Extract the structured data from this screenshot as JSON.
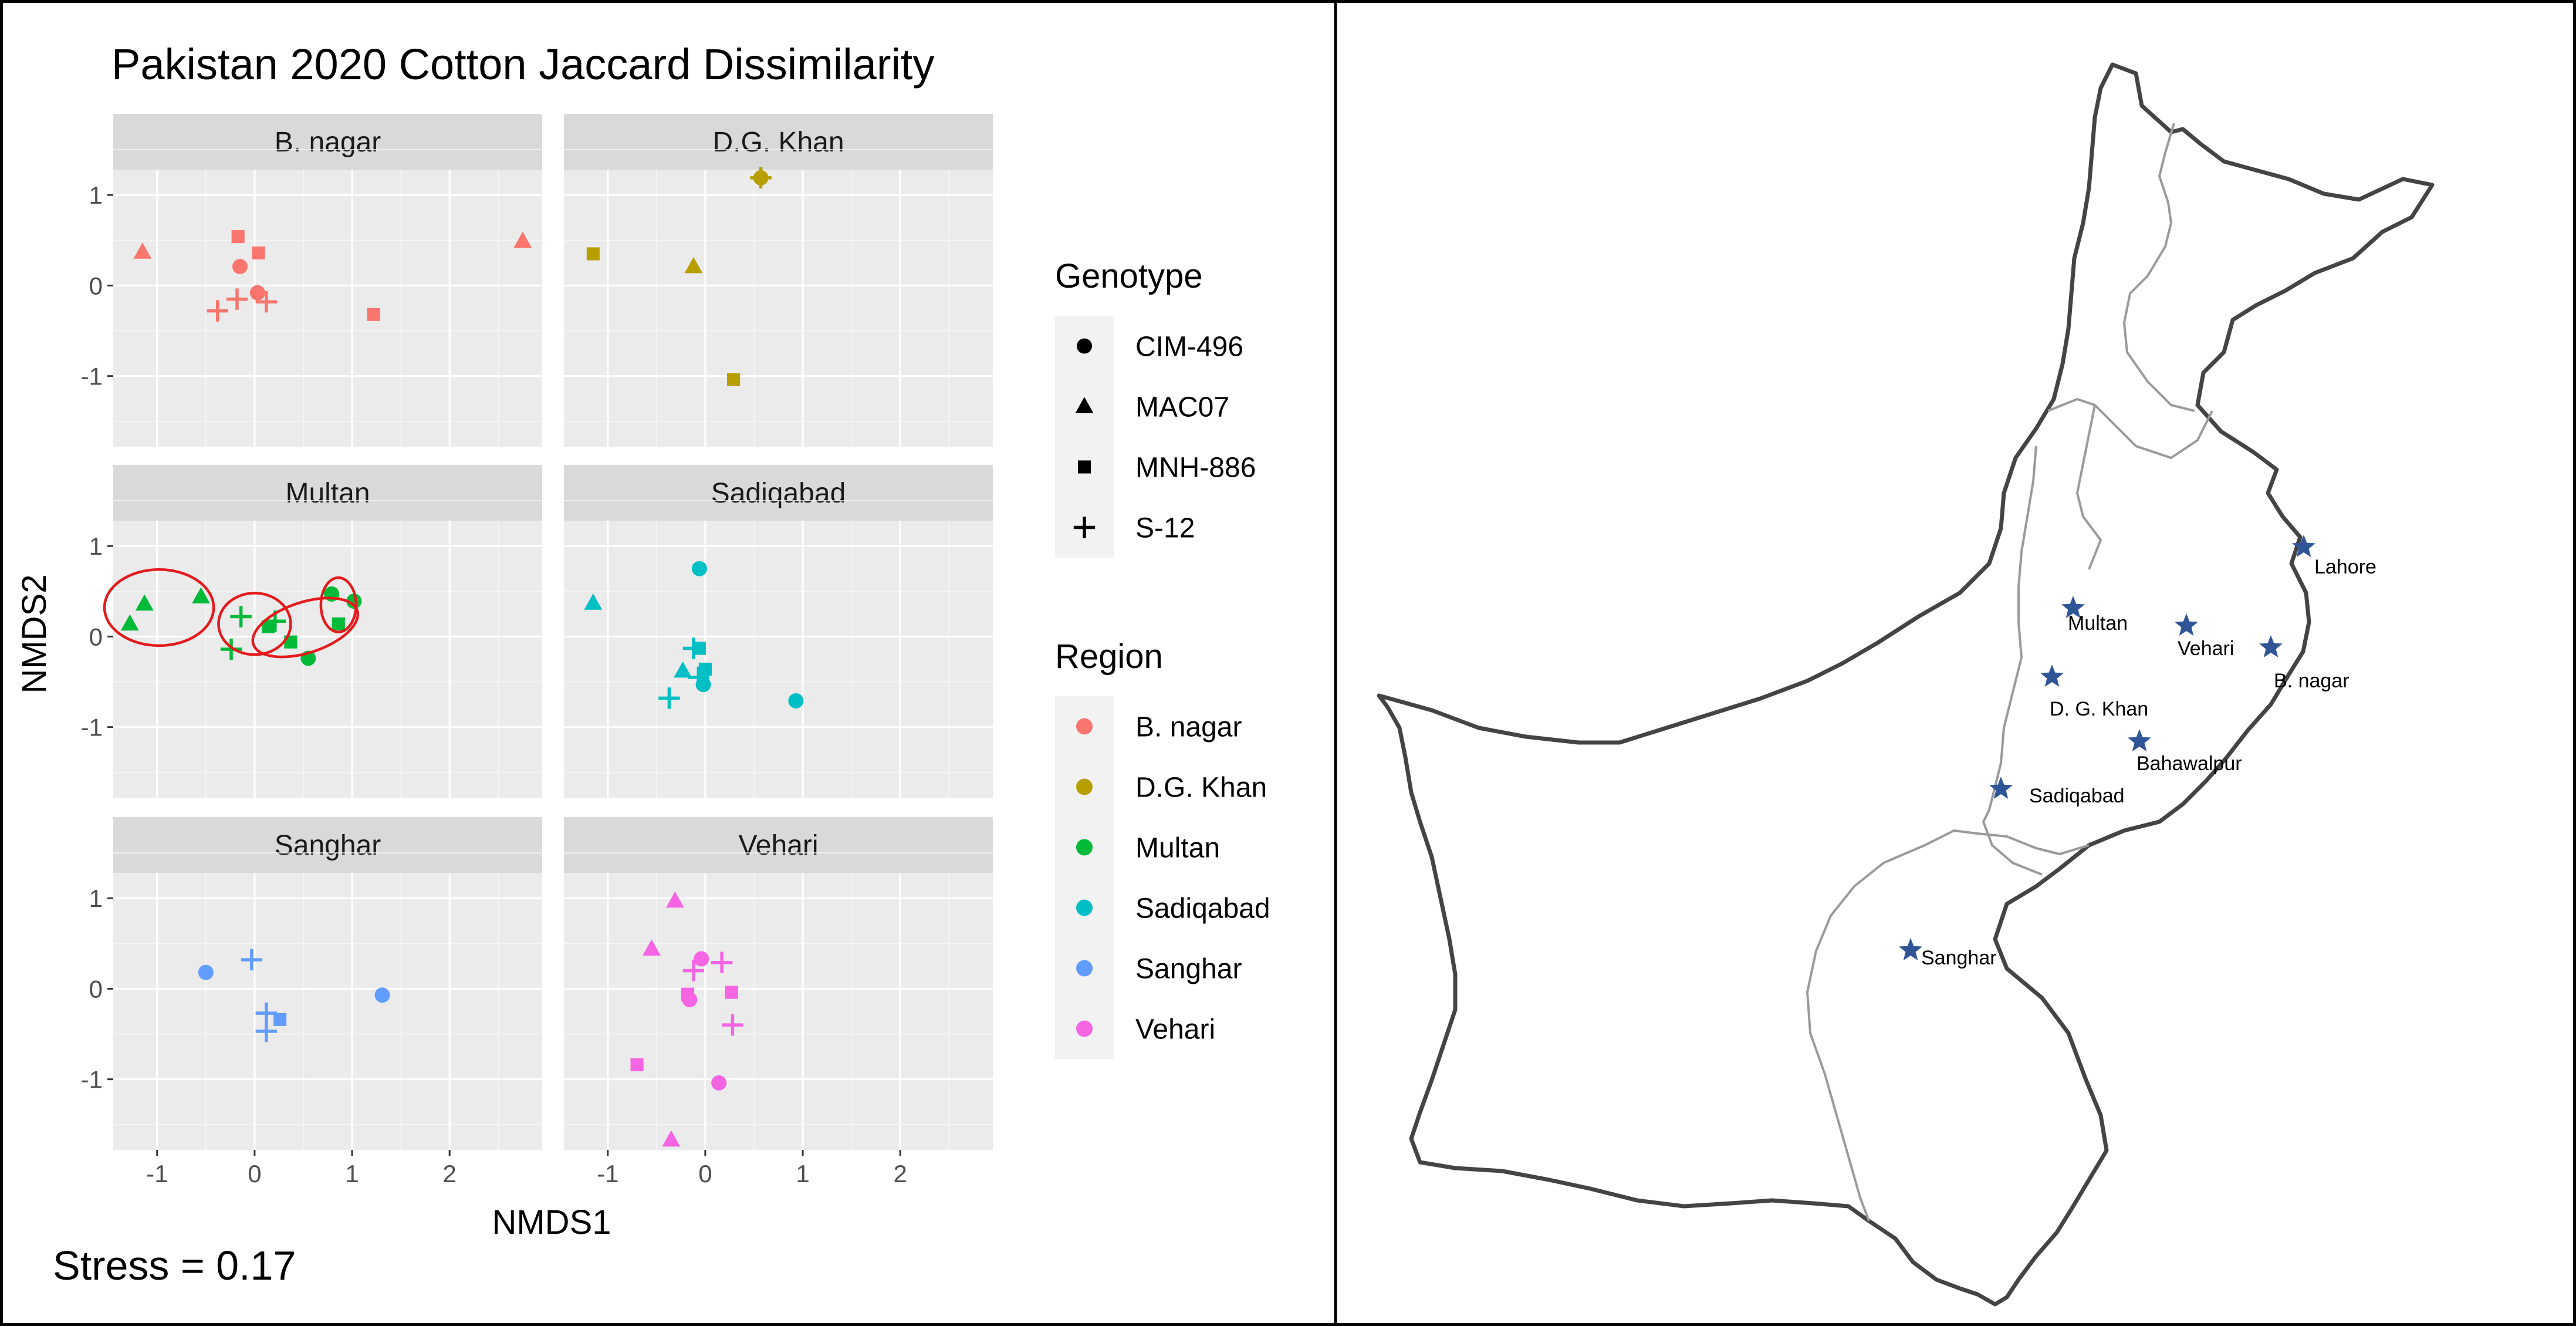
{
  "chart_data": {
    "type": "scatter",
    "title": "Pakistan 2020 Cotton Jaccard Dissimilarity",
    "xlabel": "NMDS1",
    "ylabel": "NMDS2",
    "xlim": [
      -1.45,
      2.95
    ],
    "ylim": [
      -1.78,
      1.28
    ],
    "xticks": [
      -1,
      0,
      1,
      2
    ],
    "xtick_labels": [
      "-1",
      "0",
      "1",
      "2"
    ],
    "yticks": [
      1,
      0,
      -1
    ],
    "ytick_labels": [
      "1",
      "0",
      "-1"
    ],
    "grid": true,
    "legend_position": "right",
    "annotation": "Stress = 0.17",
    "legends": {
      "genotype": {
        "title": "Genotype",
        "items": [
          {
            "label": "CIM-496",
            "shape": "circle"
          },
          {
            "label": "MAC07",
            "shape": "triangle"
          },
          {
            "label": "MNH-886",
            "shape": "square"
          },
          {
            "label": "S-12",
            "shape": "plus"
          }
        ]
      },
      "region": {
        "title": "Region",
        "items": [
          {
            "label": "B. nagar",
            "color": "#F8766D"
          },
          {
            "label": "D.G. Khan",
            "color": "#B79F00"
          },
          {
            "label": "Multan",
            "color": "#00BA38"
          },
          {
            "label": "Sadiqabad",
            "color": "#00BFC4"
          },
          {
            "label": "Sanghar",
            "color": "#619CFF"
          },
          {
            "label": "Vehari",
            "color": "#F564E3"
          }
        ]
      }
    },
    "facets": [
      {
        "name": "B. nagar",
        "color": "#F8766D",
        "points": [
          {
            "x": -1.15,
            "y": 0.37,
            "g": "triangle"
          },
          {
            "x": 2.75,
            "y": 0.49,
            "g": "triangle"
          },
          {
            "x": -0.17,
            "y": 0.54,
            "g": "square"
          },
          {
            "x": 0.04,
            "y": 0.36,
            "g": "square"
          },
          {
            "x": 1.22,
            "y": -0.32,
            "g": "square"
          },
          {
            "x": -0.15,
            "y": 0.21,
            "g": "circle"
          },
          {
            "x": 0.03,
            "y": -0.08,
            "g": "circle"
          },
          {
            "x": -0.38,
            "y": -0.28,
            "g": "plus"
          },
          {
            "x": -0.18,
            "y": -0.15,
            "g": "plus"
          },
          {
            "x": 0.12,
            "y": -0.18,
            "g": "plus"
          }
        ]
      },
      {
        "name": "D.G. Khan",
        "color": "#B79F00",
        "points": [
          {
            "x": 0.57,
            "y": 1.19,
            "g": "circle"
          },
          {
            "x": 0.57,
            "y": 1.19,
            "g": "plus"
          },
          {
            "x": -1.15,
            "y": 0.35,
            "g": "square"
          },
          {
            "x": -0.12,
            "y": 0.21,
            "g": "triangle"
          },
          {
            "x": 0.29,
            "y": -1.04,
            "g": "square"
          }
        ]
      },
      {
        "name": "Multan",
        "color": "#00BA38",
        "points": [
          {
            "x": -1.28,
            "y": 0.14,
            "g": "triangle"
          },
          {
            "x": -1.13,
            "y": 0.36,
            "g": "triangle"
          },
          {
            "x": -0.55,
            "y": 0.44,
            "g": "triangle"
          },
          {
            "x": -0.14,
            "y": 0.22,
            "g": "plus"
          },
          {
            "x": -0.24,
            "y": -0.14,
            "g": "plus"
          },
          {
            "x": 0.21,
            "y": 0.17,
            "g": "plus"
          },
          {
            "x": 0.14,
            "y": 0.11,
            "g": "square"
          },
          {
            "x": 0.37,
            "y": -0.06,
            "g": "square"
          },
          {
            "x": 0.86,
            "y": 0.14,
            "g": "square"
          },
          {
            "x": 0.55,
            "y": -0.24,
            "g": "circle"
          },
          {
            "x": 0.79,
            "y": 0.47,
            "g": "circle"
          },
          {
            "x": 1.02,
            "y": 0.39,
            "g": "circle"
          }
        ]
      },
      {
        "name": "Sadiqabad",
        "color": "#00BFC4",
        "points": [
          {
            "x": -1.15,
            "y": 0.37,
            "g": "triangle"
          },
          {
            "x": -0.23,
            "y": -0.38,
            "g": "triangle"
          },
          {
            "x": -0.06,
            "y": 0.75,
            "g": "circle"
          },
          {
            "x": 0.93,
            "y": -0.71,
            "g": "circle"
          },
          {
            "x": -0.02,
            "y": -0.53,
            "g": "circle"
          },
          {
            "x": -0.06,
            "y": -0.13,
            "g": "square"
          },
          {
            "x": 0.0,
            "y": -0.36,
            "g": "square"
          },
          {
            "x": -0.12,
            "y": -0.13,
            "g": "plus"
          },
          {
            "x": -0.07,
            "y": -0.45,
            "g": "plus"
          },
          {
            "x": -0.37,
            "y": -0.68,
            "g": "plus"
          }
        ]
      },
      {
        "name": "Sanghar",
        "color": "#619CFF",
        "points": [
          {
            "x": -0.5,
            "y": 0.18,
            "g": "circle"
          },
          {
            "x": 1.31,
            "y": -0.07,
            "g": "circle"
          },
          {
            "x": -0.03,
            "y": 0.32,
            "g": "plus"
          },
          {
            "x": 0.12,
            "y": -0.27,
            "g": "plus"
          },
          {
            "x": 0.12,
            "y": -0.47,
            "g": "plus"
          },
          {
            "x": 0.26,
            "y": -0.34,
            "g": "square"
          }
        ]
      },
      {
        "name": "Vehari",
        "color": "#F564E3",
        "points": [
          {
            "x": -0.31,
            "y": 0.97,
            "g": "triangle"
          },
          {
            "x": -0.55,
            "y": 0.44,
            "g": "triangle"
          },
          {
            "x": -0.35,
            "y": -1.67,
            "g": "triangle"
          },
          {
            "x": -0.04,
            "y": 0.33,
            "g": "circle"
          },
          {
            "x": 0.14,
            "y": -1.04,
            "g": "circle"
          },
          {
            "x": -0.16,
            "y": -0.12,
            "g": "circle"
          },
          {
            "x": 0.27,
            "y": -0.04,
            "g": "square"
          },
          {
            "x": -0.7,
            "y": -0.84,
            "g": "square"
          },
          {
            "x": -0.18,
            "y": -0.06,
            "g": "square"
          },
          {
            "x": 0.17,
            "y": 0.29,
            "g": "plus"
          },
          {
            "x": 0.28,
            "y": -0.4,
            "g": "plus"
          },
          {
            "x": -0.12,
            "y": 0.2,
            "g": "plus"
          }
        ]
      }
    ],
    "highlight_ellipses": {
      "panel": "Multan",
      "color": "#E41A1C",
      "items": [
        {
          "cx": -0.98,
          "cy": 0.32,
          "rx": 0.56,
          "ry": 0.42,
          "angle": 0
        },
        {
          "cx": 0.0,
          "cy": 0.14,
          "rx": 0.37,
          "ry": 0.34,
          "angle": 0
        },
        {
          "cx": 0.52,
          "cy": 0.1,
          "rx": 0.56,
          "ry": 0.28,
          "angle": -18
        },
        {
          "cx": 0.86,
          "cy": 0.35,
          "rx": 0.18,
          "ry": 0.3,
          "angle": 0
        }
      ]
    }
  },
  "map": {
    "locations": [
      {
        "name": "Lahore"
      },
      {
        "name": "Multan"
      },
      {
        "name": "Vehari"
      },
      {
        "name": "B. nagar"
      },
      {
        "name": "D. G. Khan"
      },
      {
        "name": "Bahawalpur"
      },
      {
        "name": "Sadiqabad"
      },
      {
        "name": "Sanghar"
      }
    ],
    "marker_color": "#2F5597"
  }
}
